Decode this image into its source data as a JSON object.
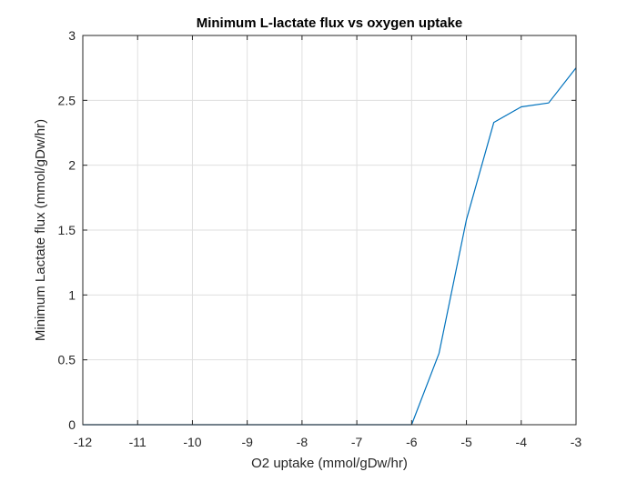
{
  "chart_data": {
    "type": "line",
    "title": "Minimum L-lactate flux vs oxygen uptake",
    "xlabel": "O2 uptake (mmol/gDw/hr)",
    "ylabel": "Minimum Lactate flux (mmol/gDw/hr)",
    "xlim": [
      -12,
      -3
    ],
    "ylim": [
      0,
      3
    ],
    "grid": true,
    "x_ticks": [
      -12,
      -11,
      -10,
      -9,
      -8,
      -7,
      -6,
      -5,
      -4,
      -3
    ],
    "x_tick_labels": [
      "-12",
      "-11",
      "-10",
      "-9",
      "-8",
      "-7",
      "-6",
      "-5",
      "-4",
      "-3"
    ],
    "y_ticks": [
      0,
      0.5,
      1,
      1.5,
      2,
      2.5,
      3
    ],
    "y_tick_labels": [
      "0",
      "0.5",
      "1",
      "1.5",
      "2",
      "2.5",
      "3"
    ],
    "series": [
      {
        "color": "#0072BD",
        "x": [
          -12,
          -11.5,
          -11,
          -10.5,
          -10,
          -9.5,
          -9,
          -8.5,
          -8,
          -7.5,
          -7,
          -6.5,
          -6,
          -5.5,
          -5,
          -4.5,
          -4,
          -3.5,
          -3
        ],
        "y": [
          0,
          0,
          0,
          0,
          0,
          0,
          0,
          0,
          0,
          0,
          0,
          0,
          0,
          0.55,
          1.58,
          2.33,
          2.45,
          2.48,
          2.75
        ]
      }
    ]
  }
}
